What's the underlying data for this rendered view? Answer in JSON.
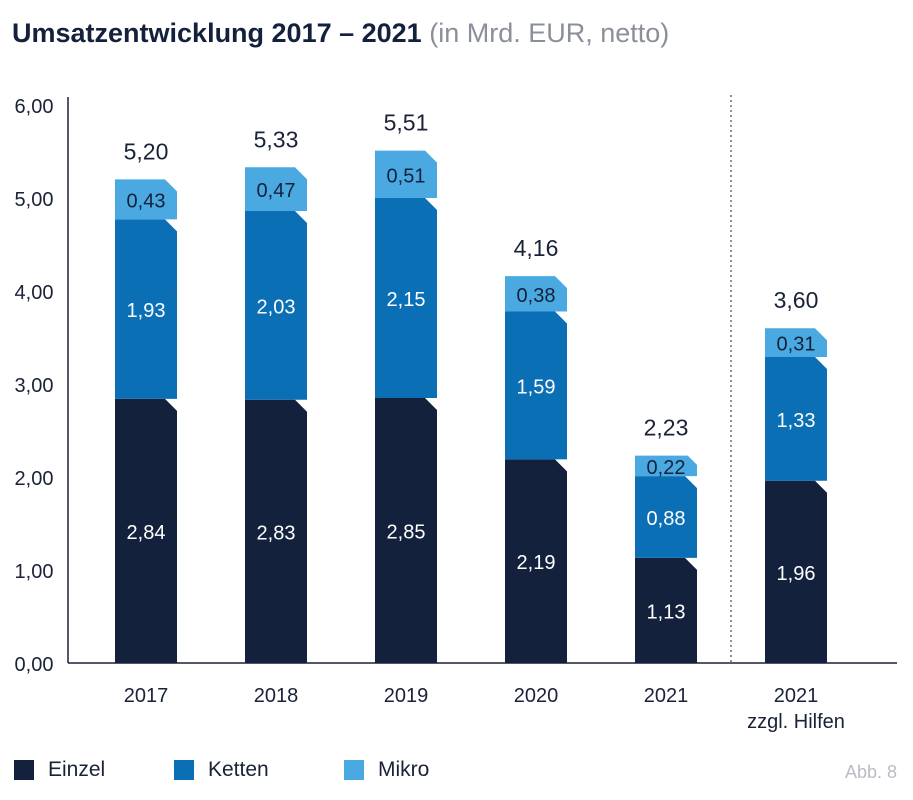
{
  "chart_data": {
    "type": "bar",
    "stacked": true,
    "title": "Umsatzentwicklung 2017 – 2021",
    "subtitle": "(in Mrd. EUR, netto)",
    "categories": [
      "2017",
      "2018",
      "2019",
      "2020",
      "2021",
      "2021 zzgl. Hilfen"
    ],
    "category_lines": [
      [
        "2017"
      ],
      [
        "2018"
      ],
      [
        "2019"
      ],
      [
        "2020"
      ],
      [
        "2021"
      ],
      [
        "2021",
        "zzgl. Hilfen"
      ]
    ],
    "series": [
      {
        "name": "Einzel",
        "color": "#14213d",
        "values": [
          2.84,
          2.83,
          2.85,
          2.19,
          1.13,
          1.96
        ],
        "labels": [
          "2,84",
          "2,83",
          "2,85",
          "2,19",
          "1,13",
          "1,96"
        ]
      },
      {
        "name": "Ketten",
        "color": "#0b6fb6",
        "values": [
          1.93,
          2.03,
          2.15,
          1.59,
          0.88,
          1.33
        ],
        "labels": [
          "1,93",
          "2,03",
          "2,15",
          "1,59",
          "0,88",
          "1,33"
        ]
      },
      {
        "name": "Mikro",
        "color": "#4aa9e0",
        "values": [
          0.43,
          0.47,
          0.51,
          0.38,
          0.22,
          0.31
        ],
        "labels": [
          "0,43",
          "0,47",
          "0,51",
          "0,38",
          "0,22",
          "0,31"
        ]
      }
    ],
    "totals": [
      "5,20",
      "5,33",
      "5,51",
      "4,16",
      "2,23",
      "3,60"
    ],
    "total_values": [
      5.2,
      5.33,
      5.51,
      4.16,
      2.23,
      3.6
    ],
    "ylim": [
      0,
      6
    ],
    "yticks": [
      0,
      1,
      2,
      3,
      4,
      5,
      6
    ],
    "ytick_labels": [
      "0,00",
      "1,00",
      "2,00",
      "3,00",
      "4,00",
      "5,00",
      "6,00"
    ],
    "divider_after_category": 4,
    "legend_position": "bottom-left"
  },
  "footer": {
    "figure_label": "Abb. 8"
  }
}
